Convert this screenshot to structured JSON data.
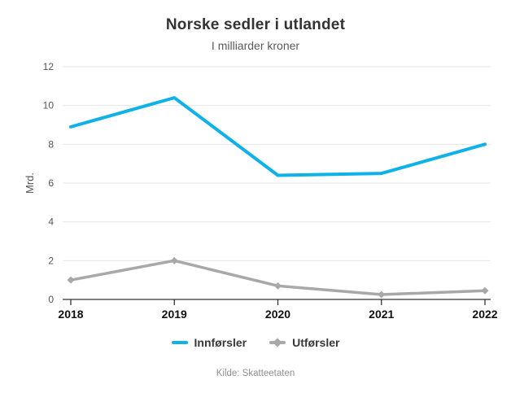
{
  "chart_data": {
    "type": "line",
    "title": "Norske sedler i utlandet",
    "subtitle": "I milliarder kroner",
    "categories": [
      "2018",
      "2019",
      "2020",
      "2021",
      "2022"
    ],
    "series": [
      {
        "name": "Innførsler",
        "values": [
          8.9,
          10.4,
          6.4,
          6.5,
          8.0
        ],
        "color": "#0eb1e8",
        "marker": "none"
      },
      {
        "name": "Utførsler",
        "values": [
          1.0,
          2.0,
          0.7,
          0.25,
          0.45
        ],
        "color": "#a8a8a8",
        "marker": "diamond"
      }
    ],
    "xlabel": "",
    "ylabel": "Mrd.",
    "ylim": [
      0,
      12
    ],
    "yticks": [
      0,
      2,
      4,
      6,
      8,
      10,
      12
    ],
    "grid": true,
    "legend_position": "bottom",
    "colors": {
      "grid": "#e7e7e7",
      "axis": "#333333"
    }
  },
  "footer": {
    "source": "Kilde: Skatteetaten"
  }
}
